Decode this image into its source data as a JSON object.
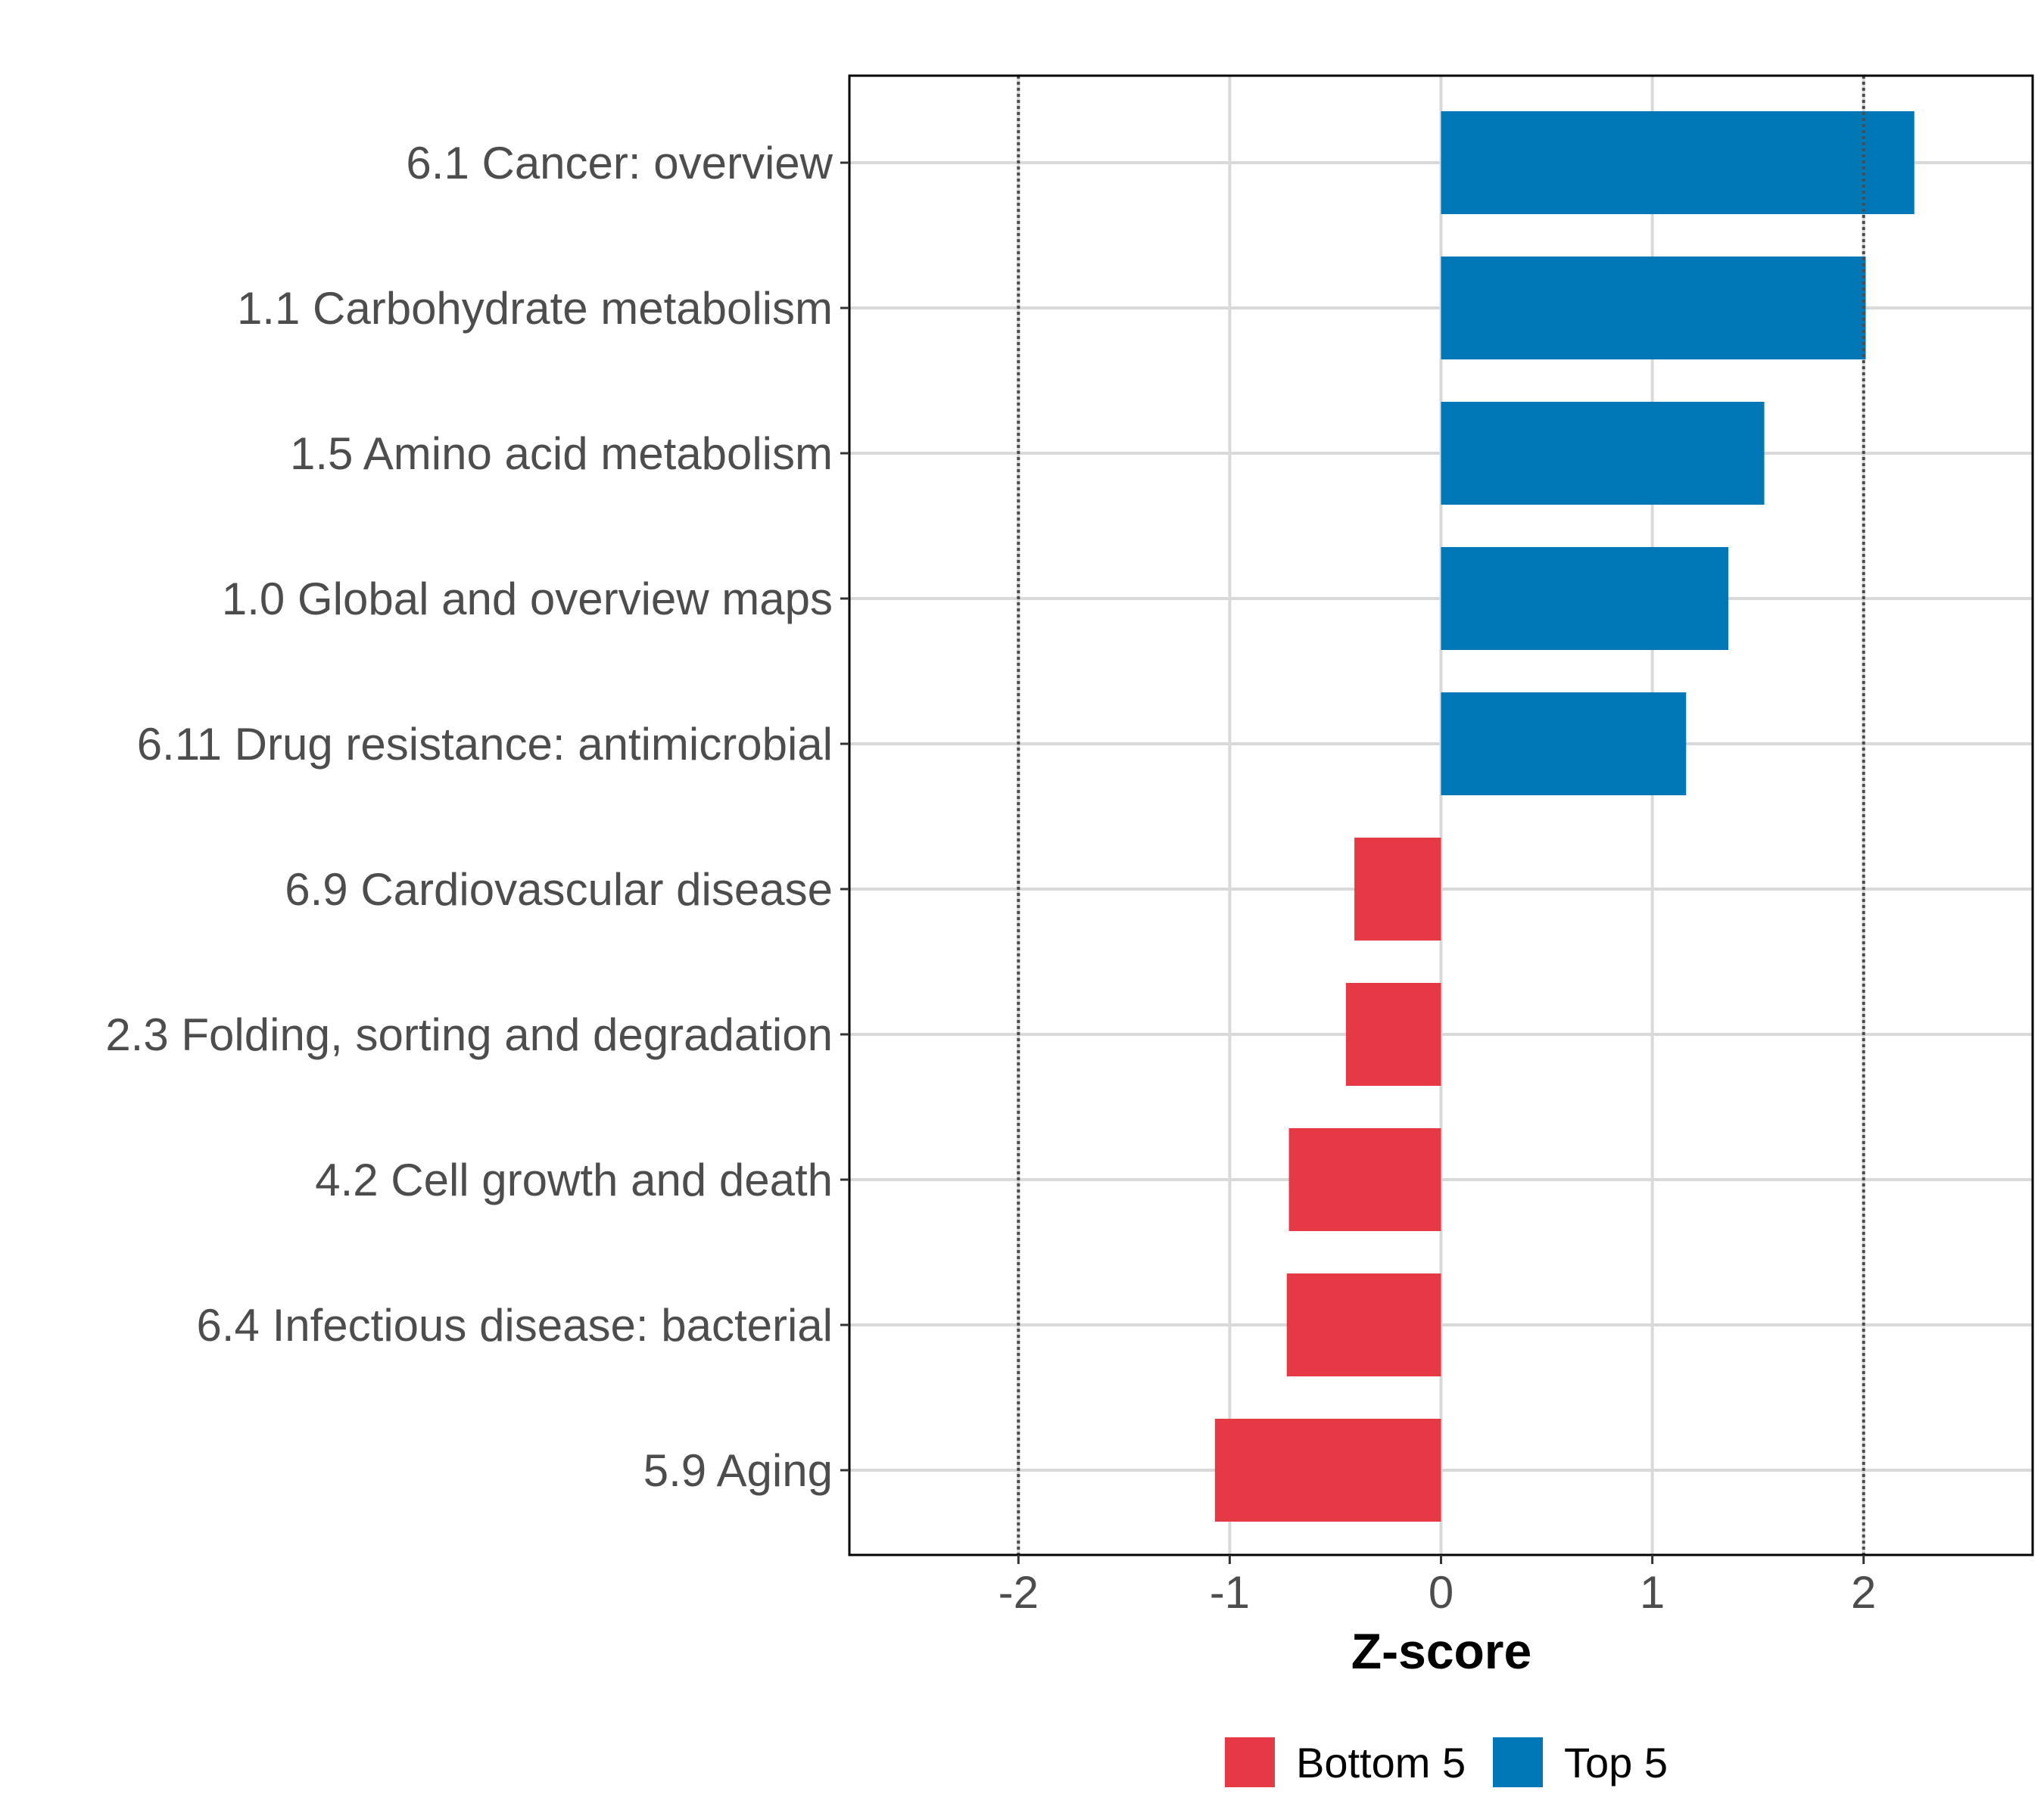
{
  "chart_data": {
    "type": "bar",
    "orientation": "horizontal",
    "title": "",
    "xlabel": "Z-score",
    "ylabel": "",
    "xlim": [
      -2.8,
      2.8
    ],
    "xticks": [
      -2,
      -1,
      0,
      1,
      2
    ],
    "xtick_labels": [
      "-2",
      "-1",
      "0",
      "1",
      "2"
    ],
    "reference_lines": [
      -2,
      2
    ],
    "grid": true,
    "legend_position": "bottom",
    "categories": [
      "6.1 Cancer: overview",
      "1.1 Carbohydrate metabolism",
      "1.5 Amino acid metabolism",
      "1.0 Global and overview maps",
      "6.11 Drug resistance: antimicrobial",
      "6.9 Cardiovascular disease",
      "2.3 Folding, sorting and degradation",
      "4.2 Cell growth and death",
      "6.4 Infectious disease: bacterial",
      "5.9 Aging"
    ],
    "values": [
      2.24,
      2.01,
      1.53,
      1.36,
      1.16,
      -0.41,
      -0.45,
      -0.72,
      -0.73,
      -1.07
    ],
    "groups": [
      "Top 5",
      "Top 5",
      "Top 5",
      "Top 5",
      "Top 5",
      "Bottom 5",
      "Bottom 5",
      "Bottom 5",
      "Bottom 5",
      "Bottom 5"
    ],
    "legend": [
      {
        "label": "Bottom 5",
        "color": "#e63946"
      },
      {
        "label": "Top 5",
        "color": "#0077b6"
      }
    ],
    "colors": {
      "Top 5": "#0077b6",
      "Bottom 5": "#e63946",
      "grid": "#d9d9d9",
      "reference_line": "#4d4d4d",
      "panel_border": "#000000"
    }
  }
}
